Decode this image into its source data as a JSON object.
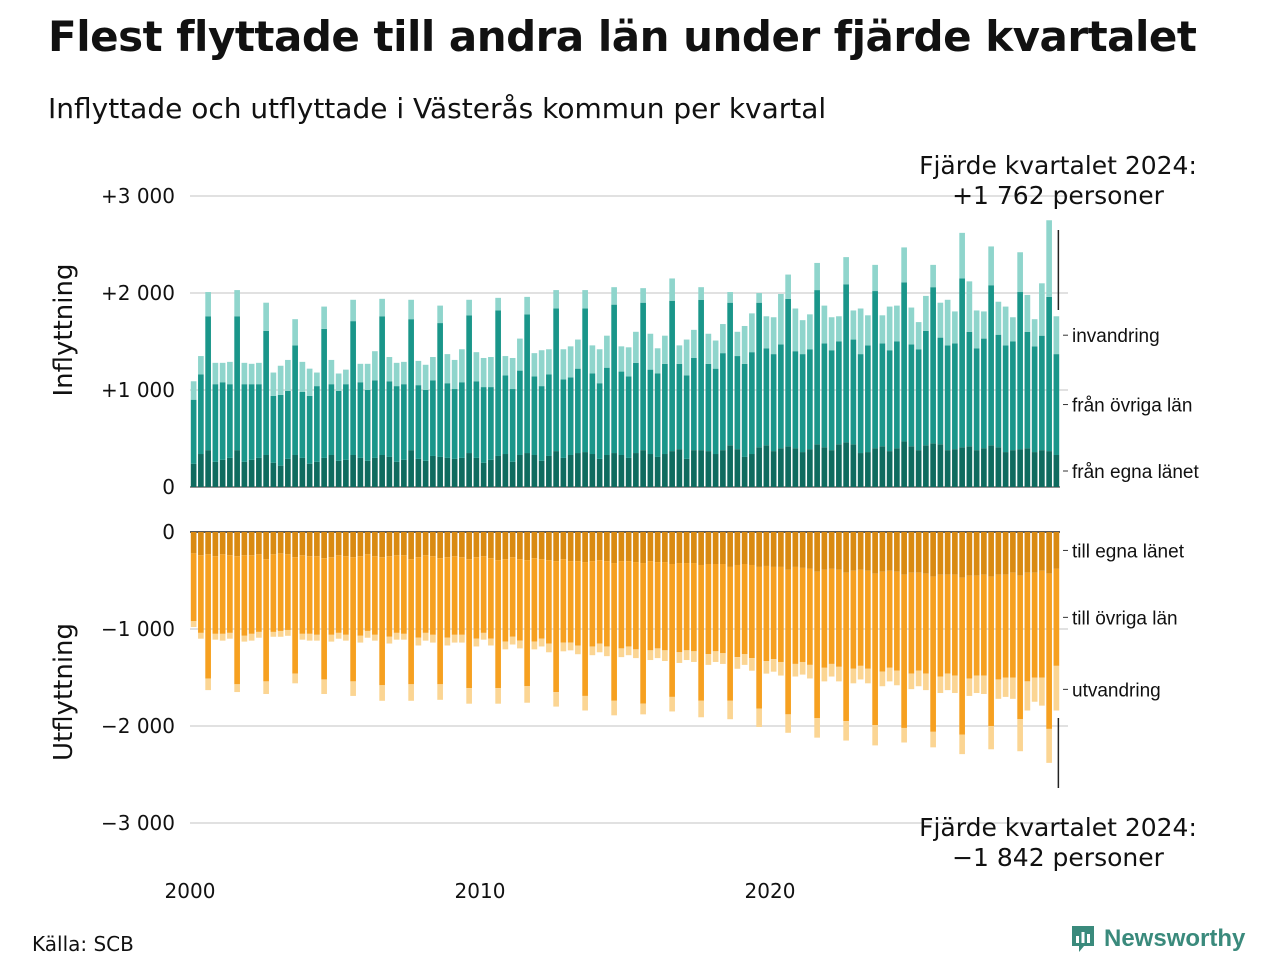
{
  "header": {
    "title": "Flest flyttade till andra län under fjärde kvartalet",
    "subtitle": "Inflyttade och utflyttade i Västerås kommun per kvartal"
  },
  "footer": {
    "source": "Källa: SCB",
    "brand": "Newsworthy"
  },
  "colors": {
    "in_own": "#0f6b5f",
    "in_other": "#1a968a",
    "in_immigration": "#8fd5cc",
    "out_own": "#d98a12",
    "out_other": "#f6a020",
    "out_emigration": "#fbd593",
    "grid": "#e1e1e1",
    "brand": "#3a8a7c"
  },
  "chart_data": [
    {
      "type": "bar",
      "stacked": true,
      "panel": "Inflyttning",
      "ylabel": "Inflyttning",
      "ylim": [
        0,
        3000
      ],
      "ytick_labels": [
        "0",
        "+1 000",
        "+2 000",
        "+3 000"
      ],
      "xtick_labels": [
        "2000",
        "2010",
        "2020"
      ],
      "grid": true,
      "annotation": [
        "Fjärde kvartalet 2024:",
        "+1 762 personer"
      ],
      "series": [
        {
          "name": "från egna länet",
          "values": [
            240,
            340,
            380,
            260,
            280,
            300,
            380,
            260,
            280,
            300,
            330,
            250,
            220,
            290,
            330,
            300,
            240,
            260,
            300,
            330,
            270,
            280,
            330,
            300,
            270,
            300,
            330,
            310,
            260,
            280,
            380,
            290,
            270,
            320,
            310,
            300,
            290,
            300,
            350,
            300,
            250,
            280,
            320,
            340,
            260,
            330,
            350,
            330,
            270,
            320,
            370,
            300,
            330,
            350,
            360,
            340,
            290,
            330,
            350,
            330,
            300,
            350,
            380,
            340,
            310,
            340,
            370,
            390,
            290,
            380,
            380,
            370,
            340,
            380,
            430,
            390,
            310,
            340,
            410,
            430,
            370,
            400,
            420,
            400,
            360,
            390,
            440,
            410,
            380,
            440,
            460,
            440,
            350,
            360,
            400,
            420,
            370,
            400,
            470,
            420,
            380,
            430,
            450,
            440,
            380,
            390,
            410,
            420,
            380,
            400,
            430,
            410,
            360,
            380,
            390,
            400,
            360,
            380,
            370,
            330
          ]
        },
        {
          "name": "från övriga län",
          "values": [
            660,
            820,
            1380,
            800,
            800,
            760,
            1380,
            800,
            780,
            760,
            1280,
            690,
            730,
            700,
            1130,
            680,
            700,
            780,
            1330,
            730,
            720,
            780,
            1380,
            780,
            730,
            800,
            1430,
            780,
            780,
            780,
            1350,
            760,
            730,
            780,
            1380,
            770,
            720,
            780,
            1420,
            790,
            780,
            750,
            1500,
            810,
            750,
            870,
            1430,
            810,
            770,
            840,
            1470,
            810,
            800,
            870,
            1480,
            830,
            780,
            900,
            1530,
            860,
            840,
            930,
            1520,
            870,
            860,
            930,
            1550,
            880,
            860,
            950,
            1550,
            900,
            880,
            1000,
            1470,
            960,
            960,
            1050,
            1490,
            1000,
            1000,
            1070,
            1520,
            1000,
            1010,
            1030,
            1590,
            1070,
            1030,
            1060,
            1630,
            1080,
            1020,
            1100,
            1620,
            1060,
            1040,
            1100,
            1640,
            1050,
            1040,
            1180,
            1610,
            1100,
            1080,
            1090,
            1740,
            1180,
            1050,
            1130,
            1650,
            1160,
            1100,
            1120,
            1620,
            1200,
            1090,
            1180,
            1590,
            1040
          ]
        },
        {
          "name": "invandring",
          "values": [
            190,
            190,
            250,
            220,
            200,
            230,
            270,
            220,
            210,
            220,
            290,
            240,
            300,
            320,
            270,
            310,
            280,
            140,
            230,
            250,
            180,
            150,
            220,
            190,
            270,
            300,
            180,
            250,
            240,
            230,
            200,
            250,
            260,
            240,
            180,
            300,
            300,
            340,
            160,
            300,
            300,
            310,
            130,
            200,
            320,
            330,
            180,
            240,
            370,
            260,
            190,
            310,
            320,
            300,
            190,
            290,
            350,
            330,
            180,
            260,
            300,
            320,
            150,
            370,
            260,
            290,
            230,
            190,
            370,
            290,
            130,
            310,
            290,
            300,
            110,
            250,
            390,
            400,
            100,
            330,
            380,
            520,
            250,
            440,
            350,
            360,
            280,
            390,
            340,
            260,
            280,
            300,
            470,
            310,
            270,
            290,
            450,
            370,
            360,
            380,
            280,
            360,
            230,
            360,
            470,
            330,
            470,
            520,
            390,
            280,
            400,
            340,
            400,
            250,
            410,
            380,
            280,
            540,
            790,
            390
          ]
        }
      ]
    },
    {
      "type": "bar",
      "stacked": true,
      "panel": "Utflyttning",
      "ylabel": "Utflyttning",
      "ylim": [
        -3000,
        0
      ],
      "ytick_labels": [
        "0",
        "−1 000",
        "−2 000",
        "−3 000"
      ],
      "xtick_labels": [
        "2000",
        "2010",
        "2020"
      ],
      "grid": true,
      "annotation": [
        "Fjärde kvartalet 2024:",
        "−1 842 personer"
      ],
      "series": [
        {
          "name": "till egna länet",
          "values": [
            -220,
            -240,
            -230,
            -250,
            -230,
            -240,
            -250,
            -240,
            -240,
            -230,
            -280,
            -230,
            -220,
            -230,
            -260,
            -240,
            -250,
            -250,
            -270,
            -260,
            -240,
            -250,
            -260,
            -250,
            -230,
            -250,
            -260,
            -250,
            -240,
            -240,
            -280,
            -260,
            -240,
            -250,
            -270,
            -260,
            -250,
            -260,
            -280,
            -260,
            -250,
            -270,
            -290,
            -280,
            -260,
            -280,
            -290,
            -270,
            -280,
            -290,
            -300,
            -280,
            -300,
            -300,
            -310,
            -300,
            -290,
            -300,
            -320,
            -300,
            -300,
            -310,
            -320,
            -300,
            -310,
            -310,
            -330,
            -320,
            -320,
            -320,
            -340,
            -330,
            -330,
            -330,
            -360,
            -340,
            -330,
            -340,
            -360,
            -350,
            -360,
            -360,
            -390,
            -360,
            -370,
            -380,
            -410,
            -390,
            -380,
            -390,
            -420,
            -400,
            -390,
            -400,
            -430,
            -410,
            -400,
            -410,
            -440,
            -420,
            -420,
            -430,
            -460,
            -440,
            -440,
            -440,
            -470,
            -450,
            -450,
            -440,
            -460,
            -440,
            -440,
            -420,
            -450,
            -420,
            -420,
            -400,
            -430,
            -380
          ]
        },
        {
          "name": "till övriga län",
          "values": [
            -700,
            -800,
            -1280,
            -800,
            -820,
            -800,
            -1320,
            -830,
            -810,
            -800,
            -1260,
            -800,
            -800,
            -780,
            -1200,
            -810,
            -800,
            -810,
            -1250,
            -800,
            -800,
            -810,
            -1280,
            -820,
            -790,
            -810,
            -1320,
            -830,
            -800,
            -810,
            -1290,
            -830,
            -800,
            -810,
            -1300,
            -830,
            -810,
            -800,
            -1330,
            -840,
            -790,
            -830,
            -1320,
            -850,
            -820,
            -840,
            -1300,
            -860,
            -820,
            -860,
            -1350,
            -860,
            -840,
            -870,
            -1380,
            -880,
            -860,
            -880,
            -1420,
            -900,
            -880,
            -900,
            -1450,
            -920,
            -890,
            -910,
            -1370,
            -920,
            -900,
            -910,
            -1400,
            -930,
            -900,
            -920,
            -1380,
            -950,
            -930,
            -960,
            -1460,
            -980,
            -950,
            -980,
            -1490,
            -1000,
            -970,
            -990,
            -1510,
            -1010,
            -980,
            -1000,
            -1530,
            -1010,
            -990,
            -1010,
            -1560,
            -1030,
            -1000,
            -1020,
            -1580,
            -1040,
            -1010,
            -1030,
            -1600,
            -1050,
            -1020,
            -1040,
            -1620,
            -1060,
            -1030,
            -1040,
            -1540,
            -1080,
            -1060,
            -1080,
            -1480,
            -1120,
            -1080,
            -1100,
            -1600,
            -1000
          ]
        },
        {
          "name": "utvandring",
          "values": [
            -60,
            -60,
            -120,
            -60,
            -70,
            -60,
            -80,
            -60,
            -70,
            -60,
            -130,
            -50,
            -60,
            -60,
            -100,
            -60,
            -70,
            -60,
            -150,
            -70,
            -60,
            -60,
            -150,
            -70,
            -70,
            -60,
            -160,
            -70,
            -70,
            -60,
            -170,
            -80,
            -80,
            -80,
            -160,
            -80,
            -80,
            -80,
            -160,
            -80,
            -70,
            -70,
            -160,
            -80,
            -80,
            -80,
            -170,
            -80,
            -80,
            -90,
            -150,
            -90,
            -80,
            -90,
            -150,
            -90,
            -90,
            -100,
            -150,
            -90,
            -90,
            -90,
            -110,
            -100,
            -100,
            -110,
            -150,
            -110,
            -100,
            -110,
            -170,
            -110,
            -110,
            -110,
            -190,
            -120,
            -110,
            -130,
            -190,
            -130,
            -130,
            -140,
            -190,
            -130,
            -130,
            -140,
            -200,
            -140,
            -130,
            -150,
            -200,
            -150,
            -140,
            -150,
            -210,
            -150,
            -140,
            -150,
            -150,
            -160,
            -160,
            -170,
            -160,
            -170,
            -170,
            -180,
            -200,
            -180,
            -180,
            -190,
            -240,
            -200,
            -200,
            -220,
            -330,
            -300,
            -250,
            -290,
            -350,
            -460
          ]
        }
      ]
    }
  ]
}
